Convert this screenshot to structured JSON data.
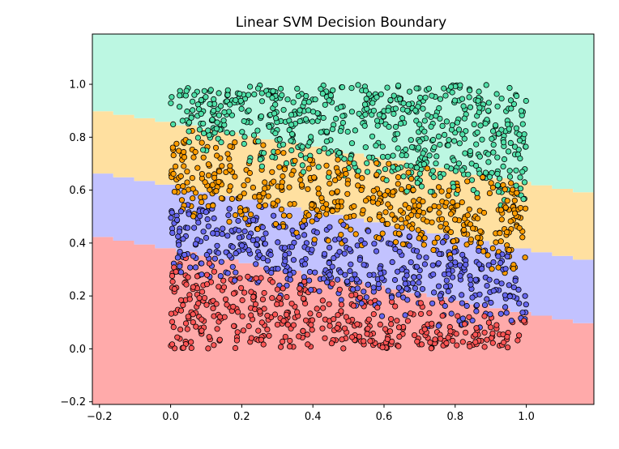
{
  "chart_data": {
    "type": "scatter",
    "title": "Linear SVM Decision Boundary",
    "xlabel": "",
    "ylabel": "",
    "xlim": [
      -0.22,
      1.19
    ],
    "ylim": [
      -0.21,
      1.19
    ],
    "x_ticks": [
      -0.2,
      0.0,
      0.2,
      0.4,
      0.6,
      0.8,
      1.0
    ],
    "x_tick_labels": [
      "−0.2",
      "0.0",
      "0.2",
      "0.4",
      "0.6",
      "0.8",
      "1.0"
    ],
    "y_ticks": [
      -0.2,
      0.0,
      0.2,
      0.4,
      0.6,
      0.8,
      1.0
    ],
    "y_tick_labels": [
      "−0.2",
      "0.0",
      "0.2",
      "0.4",
      "0.6",
      "0.8",
      "1.0"
    ],
    "grid": false,
    "point_count": 2000,
    "point_x_range": [
      0.0,
      1.0
    ],
    "point_y_range": [
      0.0,
      1.0
    ],
    "classes": [
      {
        "region_color": "#ffaaaa",
        "point_color": "#ff5555",
        "y_band": [
          0.0,
          0.35
        ]
      },
      {
        "region_color": "#c2c2ff",
        "point_color": "#6666ee",
        "y_band": [
          0.3,
          0.6
        ]
      },
      {
        "region_color": "#ffe0a0",
        "point_color": "#ff9d00",
        "y_band": [
          0.45,
          0.85
        ]
      },
      {
        "region_color": "#bcf7e2",
        "point_color": "#4fe0a8",
        "y_band": [
          0.75,
          1.0
        ]
      }
    ],
    "boundaries": [
      {
        "between": [
          0,
          1
        ],
        "y_at_xmin": 0.43,
        "y_at_xmax": 0.09
      },
      {
        "between": [
          1,
          2
        ],
        "y_at_xmin": 0.67,
        "y_at_xmax": 0.33
      },
      {
        "between": [
          2,
          3
        ],
        "y_at_xmin": 0.905,
        "y_at_xmax": 0.585
      }
    ]
  }
}
